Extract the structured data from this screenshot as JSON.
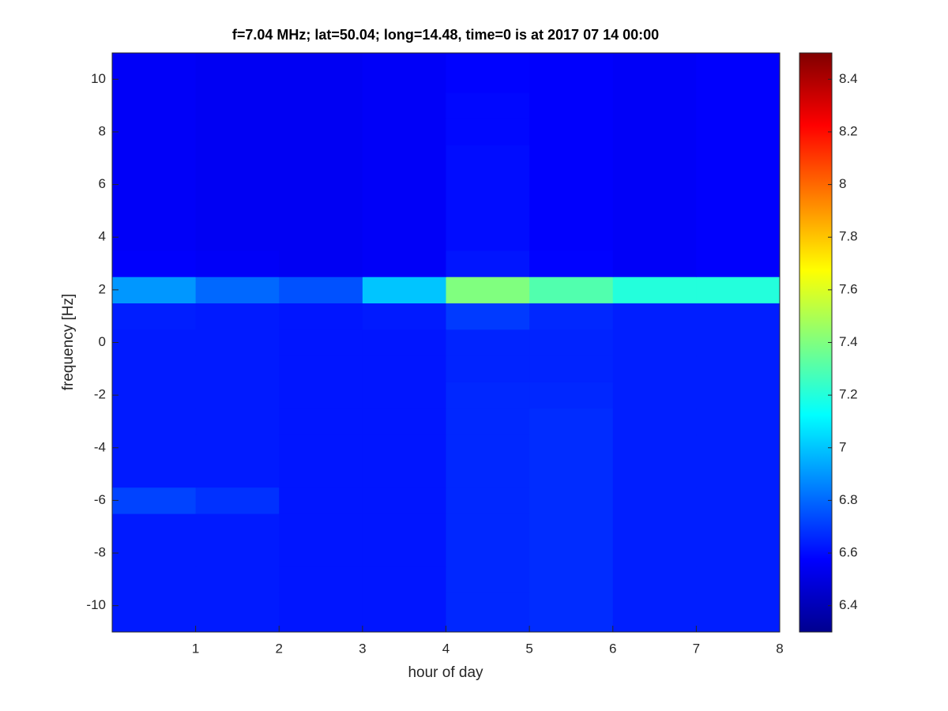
{
  "chart_data": {
    "type": "heatmap",
    "title": "f=7.04 MHz;  lat=50.04; long=14.48, time=0 is at 2017 07 14 00:00",
    "xlabel": "hour of day",
    "ylabel": "frequency [Hz]",
    "xlim": [
      0,
      8
    ],
    "ylim": [
      -11,
      11
    ],
    "xticks": [
      1,
      2,
      3,
      4,
      5,
      6,
      7,
      8
    ],
    "yticks": [
      -10,
      -8,
      -6,
      -4,
      -2,
      0,
      2,
      4,
      6,
      8,
      10
    ],
    "x_edges": [
      0,
      1,
      2,
      3,
      4,
      5,
      6,
      7,
      8
    ],
    "y_edges": [
      -11,
      -10.5,
      -9.5,
      -8.5,
      -7.5,
      -6.5,
      -5.5,
      -4.5,
      -3.5,
      -2.5,
      -1.5,
      -0.5,
      0.5,
      1.5,
      2.5,
      3.5,
      4.5,
      5.5,
      6.5,
      7.5,
      8.5,
      9.5,
      10.5,
      11
    ],
    "z": [
      [
        6.63,
        6.63,
        6.62,
        6.62,
        6.66,
        6.67,
        6.64,
        6.64
      ],
      [
        6.63,
        6.63,
        6.62,
        6.62,
        6.66,
        6.67,
        6.64,
        6.64
      ],
      [
        6.63,
        6.63,
        6.62,
        6.62,
        6.66,
        6.67,
        6.64,
        6.64
      ],
      [
        6.63,
        6.63,
        6.62,
        6.62,
        6.66,
        6.67,
        6.64,
        6.64
      ],
      [
        6.63,
        6.63,
        6.62,
        6.62,
        6.66,
        6.67,
        6.64,
        6.64
      ],
      [
        6.72,
        6.68,
        6.62,
        6.62,
        6.66,
        6.67,
        6.64,
        6.64
      ],
      [
        6.63,
        6.63,
        6.62,
        6.62,
        6.66,
        6.67,
        6.64,
        6.64
      ],
      [
        6.63,
        6.63,
        6.62,
        6.62,
        6.66,
        6.67,
        6.64,
        6.64
      ],
      [
        6.63,
        6.63,
        6.62,
        6.62,
        6.66,
        6.67,
        6.64,
        6.64
      ],
      [
        6.63,
        6.63,
        6.62,
        6.62,
        6.66,
        6.66,
        6.64,
        6.64
      ],
      [
        6.63,
        6.63,
        6.62,
        6.62,
        6.65,
        6.65,
        6.64,
        6.64
      ],
      [
        6.63,
        6.63,
        6.62,
        6.62,
        6.65,
        6.65,
        6.64,
        6.64
      ],
      [
        6.64,
        6.63,
        6.62,
        6.63,
        6.7,
        6.66,
        6.64,
        6.64
      ],
      [
        6.9,
        6.8,
        6.75,
        7.0,
        7.4,
        7.3,
        7.2,
        7.2
      ],
      [
        6.57,
        6.56,
        6.55,
        6.56,
        6.62,
        6.58,
        6.56,
        6.57
      ],
      [
        6.56,
        6.55,
        6.55,
        6.56,
        6.6,
        6.57,
        6.56,
        6.57
      ],
      [
        6.56,
        6.55,
        6.55,
        6.56,
        6.6,
        6.57,
        6.56,
        6.57
      ],
      [
        6.56,
        6.55,
        6.55,
        6.56,
        6.6,
        6.57,
        6.56,
        6.57
      ],
      [
        6.56,
        6.55,
        6.55,
        6.56,
        6.6,
        6.57,
        6.56,
        6.57
      ],
      [
        6.56,
        6.55,
        6.55,
        6.56,
        6.59,
        6.57,
        6.56,
        6.57
      ],
      [
        6.56,
        6.55,
        6.55,
        6.56,
        6.59,
        6.57,
        6.56,
        6.57
      ],
      [
        6.56,
        6.55,
        6.55,
        6.56,
        6.58,
        6.57,
        6.56,
        6.57
      ],
      [
        6.56,
        6.55,
        6.55,
        6.56,
        6.58,
        6.57,
        6.56,
        6.57
      ]
    ],
    "colormap": "jet",
    "clim": [
      6.3,
      8.5
    ],
    "cticks": [
      6.4,
      6.6,
      6.8,
      7,
      7.2,
      7.4,
      7.6,
      7.8,
      8,
      8.2,
      8.4
    ]
  }
}
